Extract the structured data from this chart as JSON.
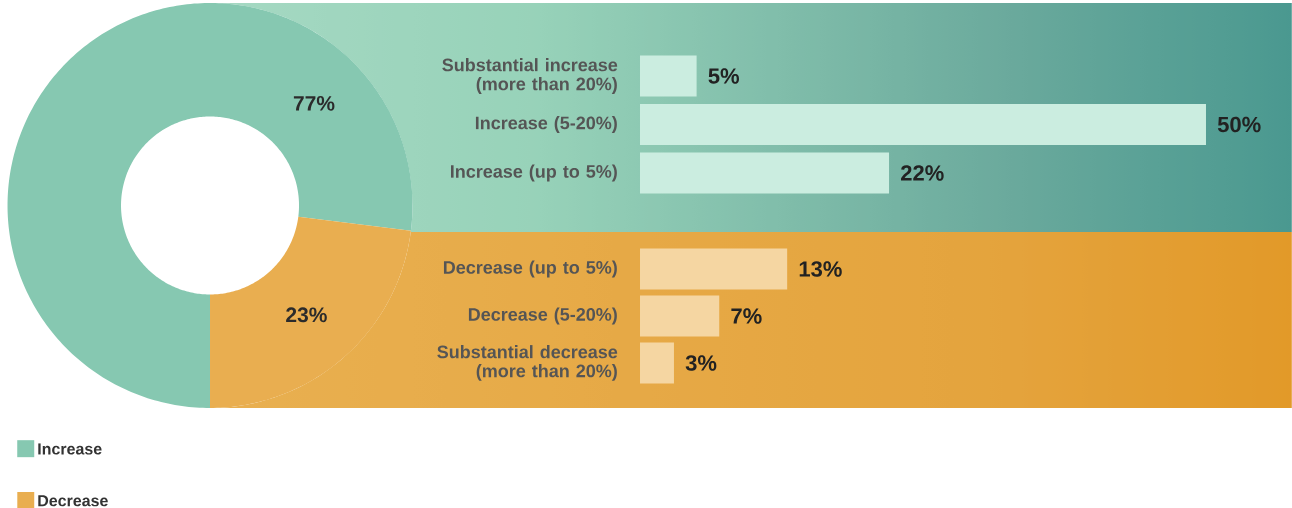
{
  "chart_data": [
    {
      "type": "donut",
      "categories": [
        "Increase",
        "Decrease"
      ],
      "values": [
        77,
        23
      ],
      "colors": [
        "#86c8b1",
        "#e9ae50"
      ],
      "value_labels": [
        "77%",
        "23%"
      ],
      "legend": "bottom left"
    },
    {
      "type": "bar",
      "orientation": "horizontal",
      "categories": [
        "Substantial increase (more than 20%)",
        "Increase (5-20%)",
        "Increase (up to 5%)"
      ],
      "values": [
        5,
        50,
        22
      ],
      "color": "#cbede0",
      "value_labels": [
        "5%",
        "50%",
        "22%"
      ],
      "tick_labels": "y"
    },
    {
      "type": "bar",
      "orientation": "horizontal",
      "categories": [
        "Decrease (up to 5%)",
        "Decrease (5-20%)",
        "Substantial decrease (more than 20%)"
      ],
      "values": [
        13,
        7,
        3
      ],
      "color": "#f5d6a2",
      "value_labels": [
        "13%",
        "7%",
        "3%"
      ],
      "tick_labels": "y"
    }
  ]
}
